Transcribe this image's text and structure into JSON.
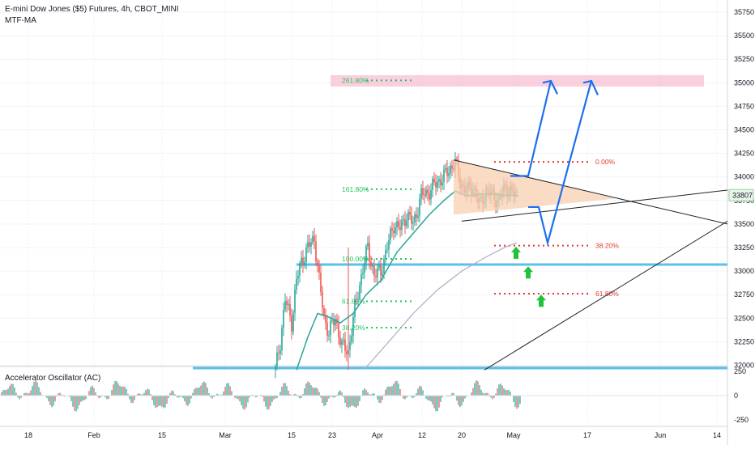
{
  "header": {
    "symbol_line": "E-mini Dow Jones ($5) Futures, 4h, CBOT_MINI",
    "indicator": "MTF-MA"
  },
  "oscillator": {
    "title": "Accelerator Oscillator (AC)"
  },
  "colors": {
    "candle_up": "#26a69a",
    "candle_down": "#ef5350",
    "ma_fast": "#26a69a",
    "ma_slow": "#b2a9c9",
    "support_line": "#5bc0eb",
    "projection_arrow": "#1e6ff0",
    "fib_left": "#22c55e",
    "fib_right": "#e53935",
    "target_zone": "#f8bbd0",
    "triangle_fill": "#f8cfb0",
    "price_tag": "#e8f5e9"
  },
  "chart_data": {
    "type": "candlestick",
    "symbol": "E-mini Dow Jones ($5) Futures",
    "timeframe": "4h",
    "price_axis": {
      "ticks": [
        35750,
        35500,
        35250,
        35000,
        34750,
        34500,
        34250,
        34000,
        33750,
        33500,
        33250,
        33000,
        32750,
        32500,
        32250,
        32000
      ],
      "range": [
        31950,
        35850
      ],
      "last_price_label": "33807"
    },
    "time_axis": {
      "ticks": [
        "18",
        "Feb",
        "15",
        "Mar",
        "15",
        "23",
        "Apr",
        "12",
        "20",
        "May",
        "17",
        "Jun",
        "14"
      ]
    },
    "oscillator_axis": {
      "ticks": [
        "250",
        "0",
        "-250"
      ]
    },
    "fibonacci_extension": {
      "levels": [
        {
          "label": "261.80%",
          "price": 35025
        },
        {
          "label": "161.80%",
          "price": 33870
        },
        {
          "label": "100.00%",
          "price": 33130
        },
        {
          "label": "61.80%",
          "price": 32680
        },
        {
          "label": "38.20%",
          "price": 32400
        }
      ]
    },
    "fibonacci_retracement": {
      "levels": [
        {
          "label": "0.00%",
          "price": 34160
        },
        {
          "label": "38.20%",
          "price": 33270
        },
        {
          "label": "61.80%",
          "price": 32760
        }
      ]
    },
    "horizontal_supports": [
      33070,
      31970
    ],
    "target_zone": [
      34960,
      35080
    ],
    "annotations": [
      "triangle consolidation",
      "projected breakout arrows toward target zone",
      "green up-arrows at retracement levels"
    ]
  }
}
